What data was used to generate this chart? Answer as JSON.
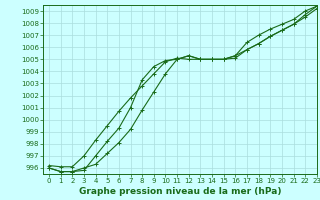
{
  "title": "Graphe pression niveau de la mer (hPa)",
  "xlim": [
    -0.5,
    23
  ],
  "ylim": [
    995.5,
    1009.5
  ],
  "yticks": [
    996,
    997,
    998,
    999,
    1000,
    1001,
    1002,
    1003,
    1004,
    1005,
    1006,
    1007,
    1008,
    1009
  ],
  "xticks": [
    0,
    1,
    2,
    3,
    4,
    5,
    6,
    7,
    8,
    9,
    10,
    11,
    12,
    13,
    14,
    15,
    16,
    17,
    18,
    19,
    20,
    21,
    22,
    23
  ],
  "line1_x": [
    0,
    1,
    2,
    3,
    4,
    5,
    6,
    7,
    8,
    9,
    10,
    11,
    12,
    13,
    14,
    15,
    16,
    17,
    18,
    19,
    20,
    21,
    22,
    23
  ],
  "line1_y": [
    996.0,
    995.7,
    995.7,
    995.8,
    997.0,
    998.2,
    999.3,
    1001.0,
    1003.3,
    1004.4,
    1004.9,
    1005.0,
    1005.3,
    1005.0,
    1005.0,
    1005.0,
    1005.3,
    1006.4,
    1007.0,
    1007.5,
    1007.9,
    1008.3,
    1009.0,
    1009.4
  ],
  "line2_x": [
    0,
    1,
    2,
    3,
    4,
    5,
    6,
    7,
    8,
    9,
    10,
    11,
    12,
    13,
    14,
    15,
    16,
    17,
    18,
    19,
    20,
    21,
    22,
    23
  ],
  "line2_y": [
    996.0,
    995.7,
    995.7,
    996.0,
    996.3,
    997.2,
    998.1,
    999.2,
    1000.8,
    1002.3,
    1003.8,
    1005.0,
    1005.3,
    1005.0,
    1005.0,
    1005.0,
    1005.3,
    1005.8,
    1006.3,
    1006.9,
    1007.4,
    1007.9,
    1008.7,
    1009.4
  ],
  "line3_x": [
    0,
    1,
    2,
    3,
    4,
    5,
    6,
    7,
    8,
    9,
    10,
    11,
    12,
    13,
    14,
    15,
    16,
    17,
    18,
    19,
    20,
    21,
    22,
    23
  ],
  "line3_y": [
    996.2,
    996.1,
    996.1,
    997.0,
    998.3,
    999.5,
    1000.7,
    1001.8,
    1002.8,
    1003.8,
    1004.8,
    1005.1,
    1005.0,
    1005.0,
    1005.0,
    1005.0,
    1005.1,
    1005.8,
    1006.3,
    1006.9,
    1007.4,
    1007.9,
    1008.5,
    1009.2
  ],
  "line_color": "#1a6b1a",
  "bg_color": "#ccffff",
  "grid_color": "#aadddd",
  "title_color": "#1a6b1a",
  "tick_color": "#1a6b1a",
  "axis_color": "#1a6b1a",
  "marker": "+",
  "linewidth": 0.8,
  "markersize": 3,
  "title_fontsize": 6.5,
  "tick_fontsize": 5.0
}
